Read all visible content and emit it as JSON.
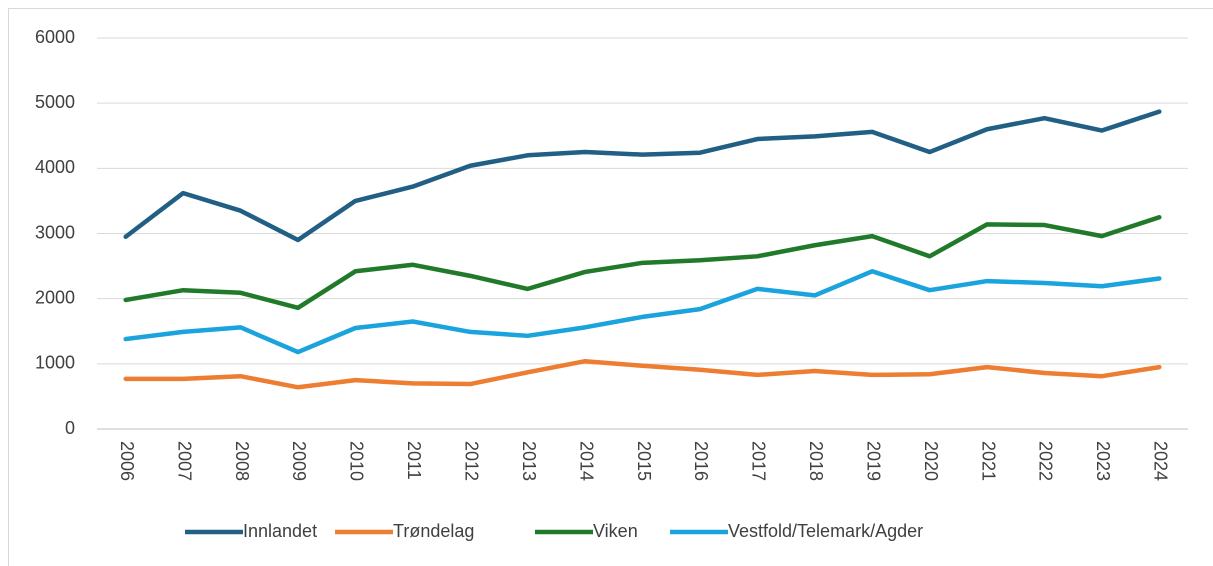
{
  "chart_data": {
    "type": "line",
    "categories": [
      "2006",
      "2007",
      "2008",
      "2009",
      "2010",
      "2011",
      "2012",
      "2013",
      "2014",
      "2015",
      "2016",
      "2017",
      "2018",
      "2019",
      "2020",
      "2021",
      "2022",
      "2023",
      "2024"
    ],
    "series": [
      {
        "name": "Innlandet",
        "color": "#215f84",
        "values": [
          2950,
          3620,
          3350,
          2900,
          3500,
          3720,
          4040,
          4200,
          4250,
          4210,
          4240,
          4450,
          4490,
          4560,
          4250,
          4600,
          4770,
          4580,
          4870
        ]
      },
      {
        "name": "Trøndelag",
        "color": "#ed7d31",
        "values": [
          770,
          770,
          810,
          640,
          750,
          700,
          690,
          870,
          1040,
          970,
          910,
          830,
          890,
          830,
          840,
          950,
          860,
          810,
          950
        ]
      },
      {
        "name": "Viken",
        "color": "#217a2a",
        "values": [
          1980,
          2130,
          2090,
          1860,
          2420,
          2520,
          2350,
          2150,
          2410,
          2550,
          2590,
          2650,
          2820,
          2960,
          2650,
          3140,
          3130,
          2960,
          3250
        ]
      },
      {
        "name": "Vestfold/Telemark/Agder",
        "color": "#1aa3dc",
        "values": [
          1380,
          1490,
          1560,
          1180,
          1550,
          1650,
          1490,
          1430,
          1560,
          1720,
          1840,
          2150,
          2050,
          2420,
          2130,
          2270,
          2240,
          2190,
          2310
        ]
      }
    ],
    "ylim": [
      0,
      6000
    ],
    "yticks": [
      0,
      1000,
      2000,
      3000,
      4000,
      5000,
      6000
    ],
    "grid": true,
    "legend": "bottom"
  }
}
